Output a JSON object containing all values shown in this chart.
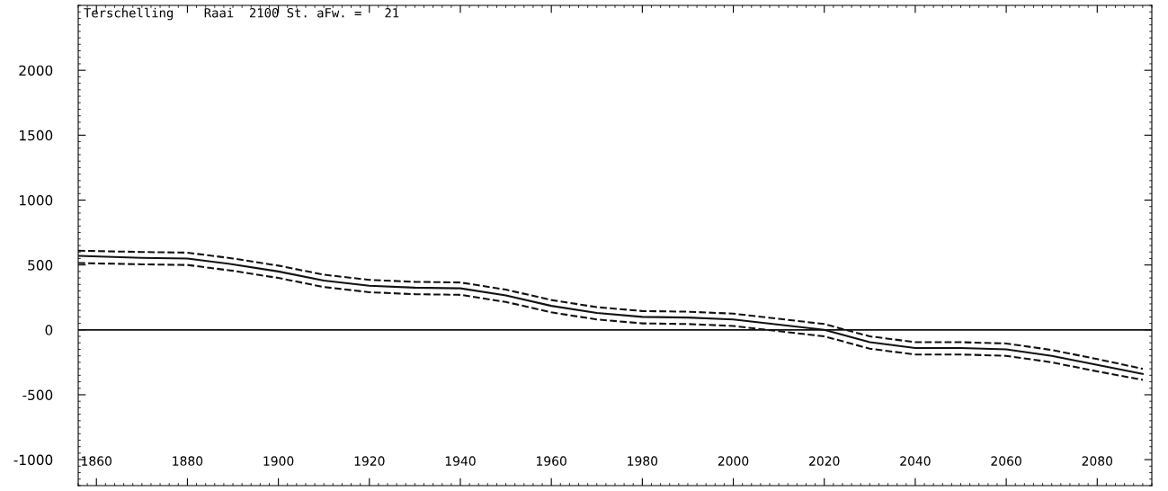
{
  "chart_data": {
    "type": "line",
    "title": "Terschelling    Raai  2100 St. aFw. =   21",
    "x": [
      1856,
      1870,
      1880,
      1890,
      1900,
      1910,
      1920,
      1930,
      1940,
      1950,
      1960,
      1970,
      1980,
      1990,
      2000,
      2010,
      2020,
      2030,
      2040,
      2050,
      2060,
      2070,
      2080,
      2090
    ],
    "series": [
      {
        "color": "#111111",
        "line_style": "solid",
        "values": [
          570,
          555,
          550,
          505,
          450,
          380,
          340,
          325,
          320,
          265,
          185,
          130,
          100,
          95,
          80,
          40,
          0,
          -95,
          -140,
          -140,
          -150,
          -200,
          -270,
          -340
        ]
      },
      {
        "color": "#111111",
        "line_style": "dashed",
        "values": [
          610,
          600,
          595,
          550,
          495,
          425,
          385,
          370,
          365,
          310,
          230,
          175,
          145,
          140,
          125,
          85,
          45,
          -50,
          -95,
          -95,
          -105,
          -155,
          -225,
          -300
        ]
      },
      {
        "color": "#111111",
        "line_style": "dashed",
        "values": [
          515,
          505,
          500,
          455,
          400,
          330,
          290,
          275,
          270,
          215,
          135,
          80,
          50,
          45,
          30,
          -10,
          -50,
          -145,
          -190,
          -190,
          -200,
          -250,
          -320,
          -385
        ]
      }
    ],
    "xlim": [
      1856,
      2092
    ],
    "ylim": [
      -1200,
      2500
    ],
    "xticks": [
      1860,
      1880,
      1900,
      1920,
      1940,
      1960,
      1980,
      2000,
      2020,
      2040,
      2060,
      2080
    ],
    "yticks": [
      -1000,
      -500,
      0,
      500,
      1000,
      1500,
      2000
    ],
    "ref_lines": [
      {
        "axis": "y",
        "value": 0,
        "color": "#111111",
        "line_style": "solid"
      }
    ],
    "grid": false,
    "legend": false,
    "marker": "none"
  }
}
